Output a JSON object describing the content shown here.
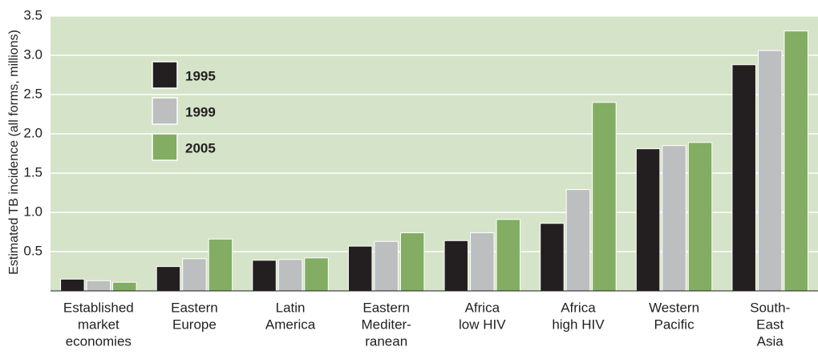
{
  "chart_data": {
    "type": "bar",
    "y_label": "Estimated TB incidence (all forms, millions)",
    "categories": [
      [
        "Established",
        "market",
        "economies"
      ],
      [
        "Eastern",
        "Europe"
      ],
      [
        "Latin",
        "America"
      ],
      [
        "Eastern",
        "Mediter-",
        "ranean"
      ],
      [
        "Africa",
        "low HIV"
      ],
      [
        "Africa",
        "high HIV"
      ],
      [
        "Western",
        "Pacific"
      ],
      [
        "South-",
        "East",
        "Asia"
      ]
    ],
    "series": [
      {
        "name": "1995",
        "color": "#231f20",
        "values": [
          0.15,
          0.31,
          0.39,
          0.57,
          0.64,
          0.86,
          1.81,
          2.88
        ]
      },
      {
        "name": "1999",
        "color": "#bcbec0",
        "values": [
          0.13,
          0.41,
          0.4,
          0.63,
          0.74,
          1.29,
          1.85,
          3.06
        ]
      },
      {
        "name": "2005",
        "color": "#82ad63",
        "values": [
          0.11,
          0.66,
          0.42,
          0.74,
          0.91,
          2.4,
          1.89,
          3.31
        ]
      }
    ],
    "ylim": [
      0,
      3.5
    ],
    "yticks": [
      0.5,
      {
        "value": 1,
        "label": "1.0"
      },
      1.5,
      {
        "value": 2,
        "label": "2.0"
      },
      2.5,
      {
        "value": 3,
        "label": "3.0"
      },
      3.5
    ],
    "grid": true,
    "background": "#d5e3c8"
  }
}
